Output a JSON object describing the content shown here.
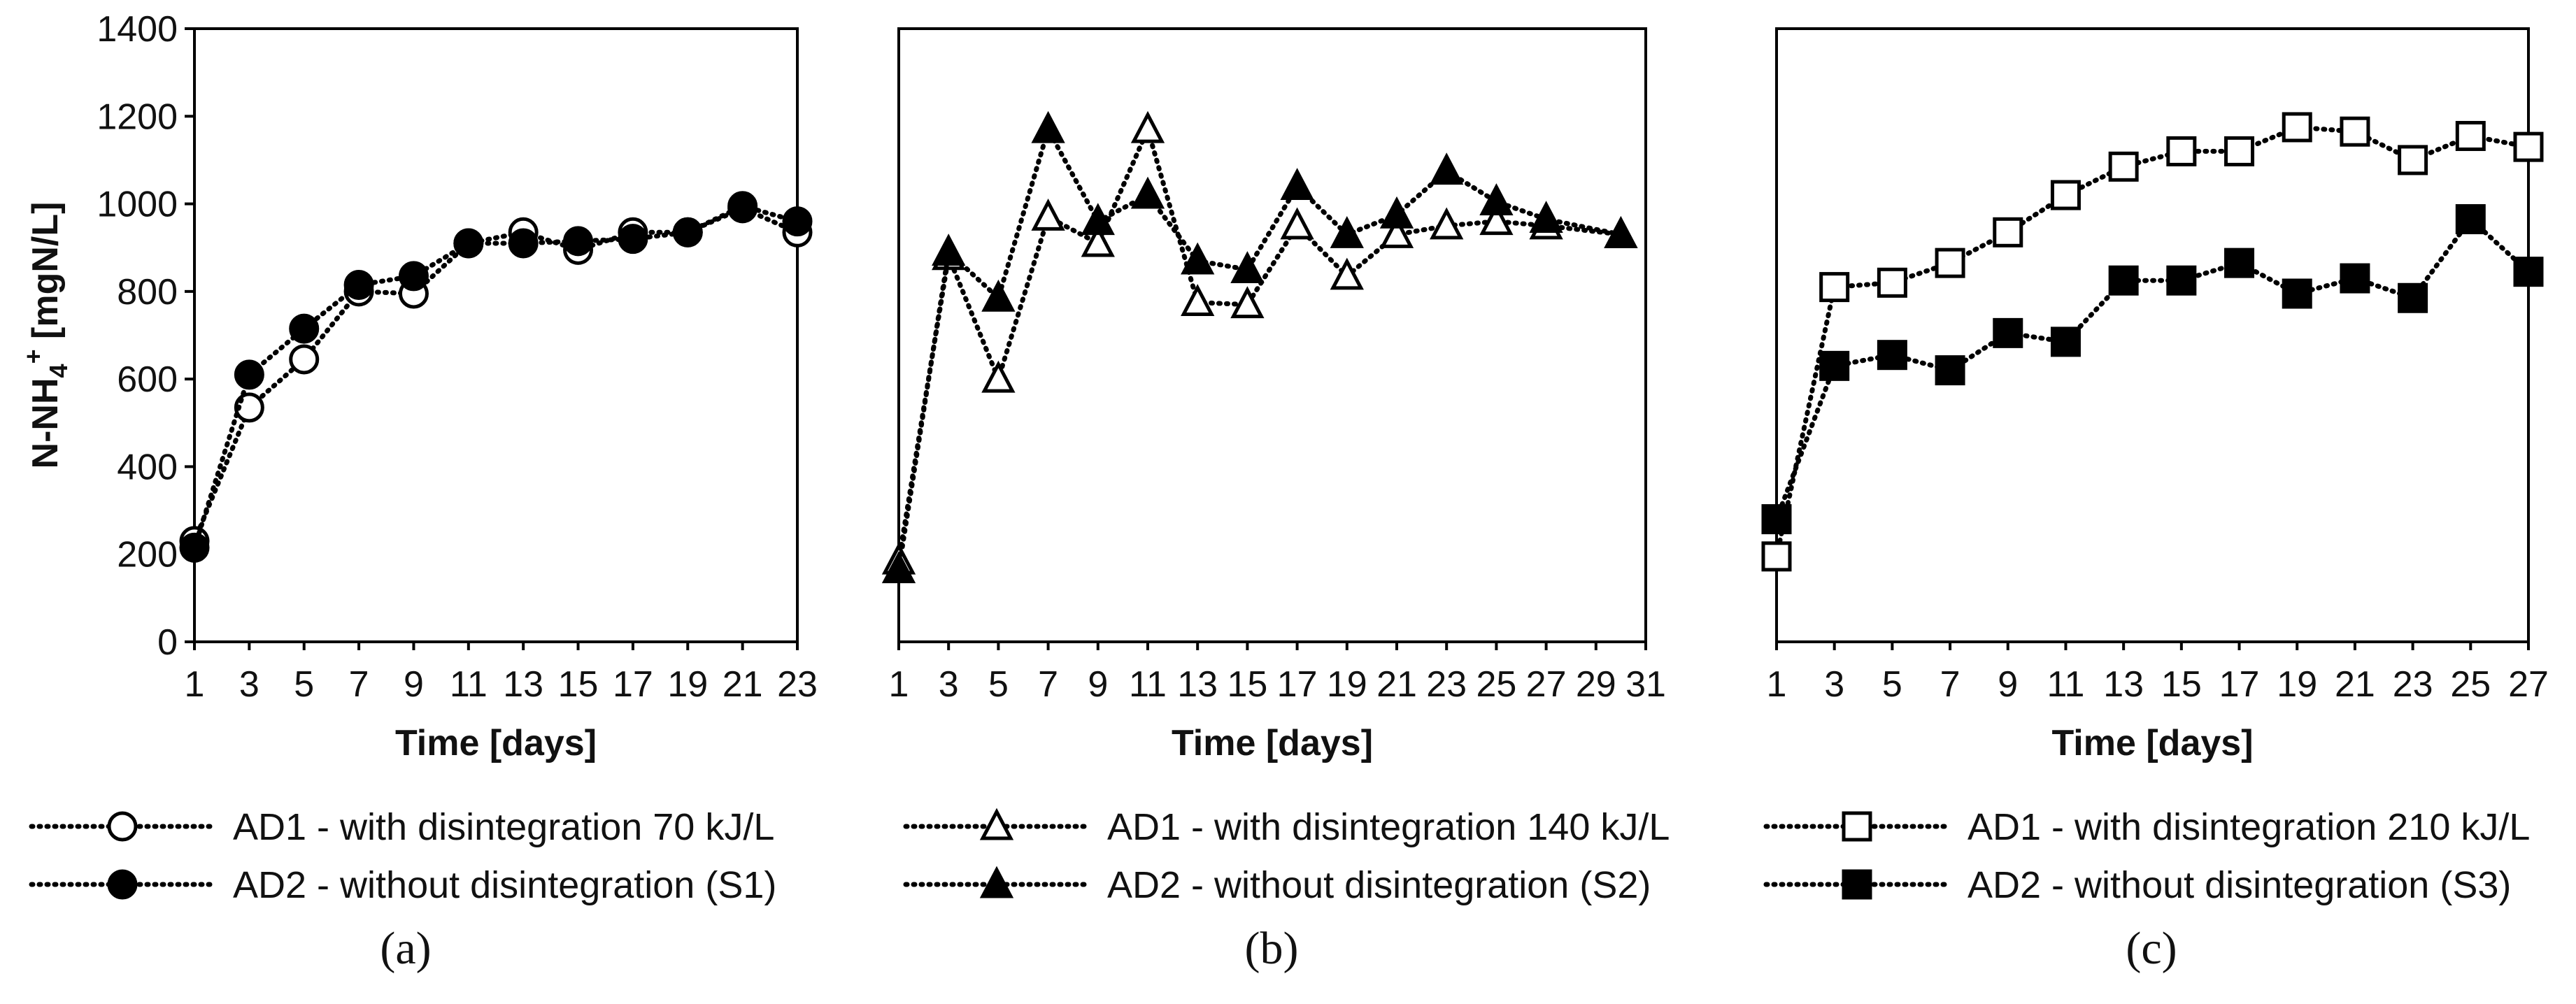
{
  "chart_data": [
    {
      "type": "line",
      "panel": "(a)",
      "ylabel_main": "N-NH",
      "ylabel_sub": "4",
      "ylabel_sup": "+",
      "ylabel_unit": " [mgN/L]",
      "xlabel": "Time [days]",
      "ylim": [
        0,
        1400
      ],
      "yticks": [
        0,
        200,
        400,
        600,
        800,
        1000,
        1200,
        1400
      ],
      "xlim": [
        1,
        23
      ],
      "xticks": [
        1,
        3,
        5,
        7,
        9,
        11,
        13,
        15,
        17,
        19,
        21,
        23
      ],
      "show_y_axis": true,
      "series": [
        {
          "name": "AD1 - with disintegration 70 kJ/L",
          "marker": "circle-open",
          "x": [
            1,
            3,
            5,
            7,
            9,
            11,
            13,
            15,
            17,
            19,
            21,
            23
          ],
          "y": [
            230,
            535,
            645,
            800,
            795,
            910,
            935,
            895,
            935,
            935,
            990,
            935
          ]
        },
        {
          "name": "AD2 - without disintegration (S1)",
          "marker": "circle-filled",
          "x": [
            1,
            3,
            5,
            7,
            9,
            11,
            13,
            15,
            17,
            19,
            21,
            23
          ],
          "y": [
            215,
            610,
            715,
            815,
            835,
            910,
            910,
            915,
            920,
            935,
            995,
            960
          ]
        }
      ]
    },
    {
      "type": "line",
      "panel": "(b)",
      "xlabel": "Time [days]",
      "ylim": [
        0,
        1400
      ],
      "xlim": [
        1,
        31
      ],
      "xticks": [
        1,
        3,
        5,
        7,
        9,
        11,
        13,
        15,
        17,
        19,
        21,
        23,
        25,
        27,
        29,
        31
      ],
      "show_y_axis": false,
      "series": [
        {
          "name": "AD1 - with disintegration 140 kJ/L",
          "marker": "triangle-open",
          "x": [
            1,
            3,
            5,
            7,
            9,
            11,
            13,
            15,
            17,
            19,
            21,
            23,
            25,
            27,
            30
          ],
          "y": [
            185,
            880,
            600,
            970,
            910,
            1170,
            775,
            770,
            950,
            835,
            930,
            950,
            960,
            950,
            930
          ]
        },
        {
          "name": "AD2 - without disintegration (S2)",
          "marker": "triangle-filled",
          "x": [
            1,
            3,
            5,
            7,
            9,
            11,
            13,
            15,
            17,
            19,
            21,
            23,
            25,
            27,
            30
          ],
          "y": [
            165,
            890,
            785,
            1170,
            960,
            1020,
            870,
            850,
            1040,
            930,
            975,
            1075,
            1005,
            965,
            930
          ]
        }
      ]
    },
    {
      "type": "line",
      "panel": "(c)",
      "xlabel": "Time [days]",
      "ylim": [
        0,
        1400
      ],
      "xlim": [
        1,
        27
      ],
      "xticks": [
        1,
        3,
        5,
        7,
        9,
        11,
        13,
        15,
        17,
        19,
        21,
        23,
        25,
        27
      ],
      "show_y_axis": false,
      "series": [
        {
          "name": "AD1 - with disintegration 210 kJ/L",
          "marker": "square-open",
          "x": [
            1,
            3,
            5,
            7,
            9,
            11,
            13,
            15,
            17,
            19,
            21,
            23,
            25,
            27
          ],
          "y": [
            195,
            810,
            820,
            865,
            935,
            1020,
            1085,
            1120,
            1120,
            1175,
            1165,
            1100,
            1155,
            1130
          ]
        },
        {
          "name": "AD2 - without disintegration (S3)",
          "marker": "square-filled",
          "x": [
            1,
            3,
            5,
            7,
            9,
            11,
            13,
            15,
            17,
            19,
            21,
            23,
            25,
            27
          ],
          "y": [
            280,
            630,
            655,
            620,
            705,
            685,
            825,
            825,
            865,
            795,
            830,
            785,
            965,
            845
          ]
        }
      ]
    }
  ]
}
